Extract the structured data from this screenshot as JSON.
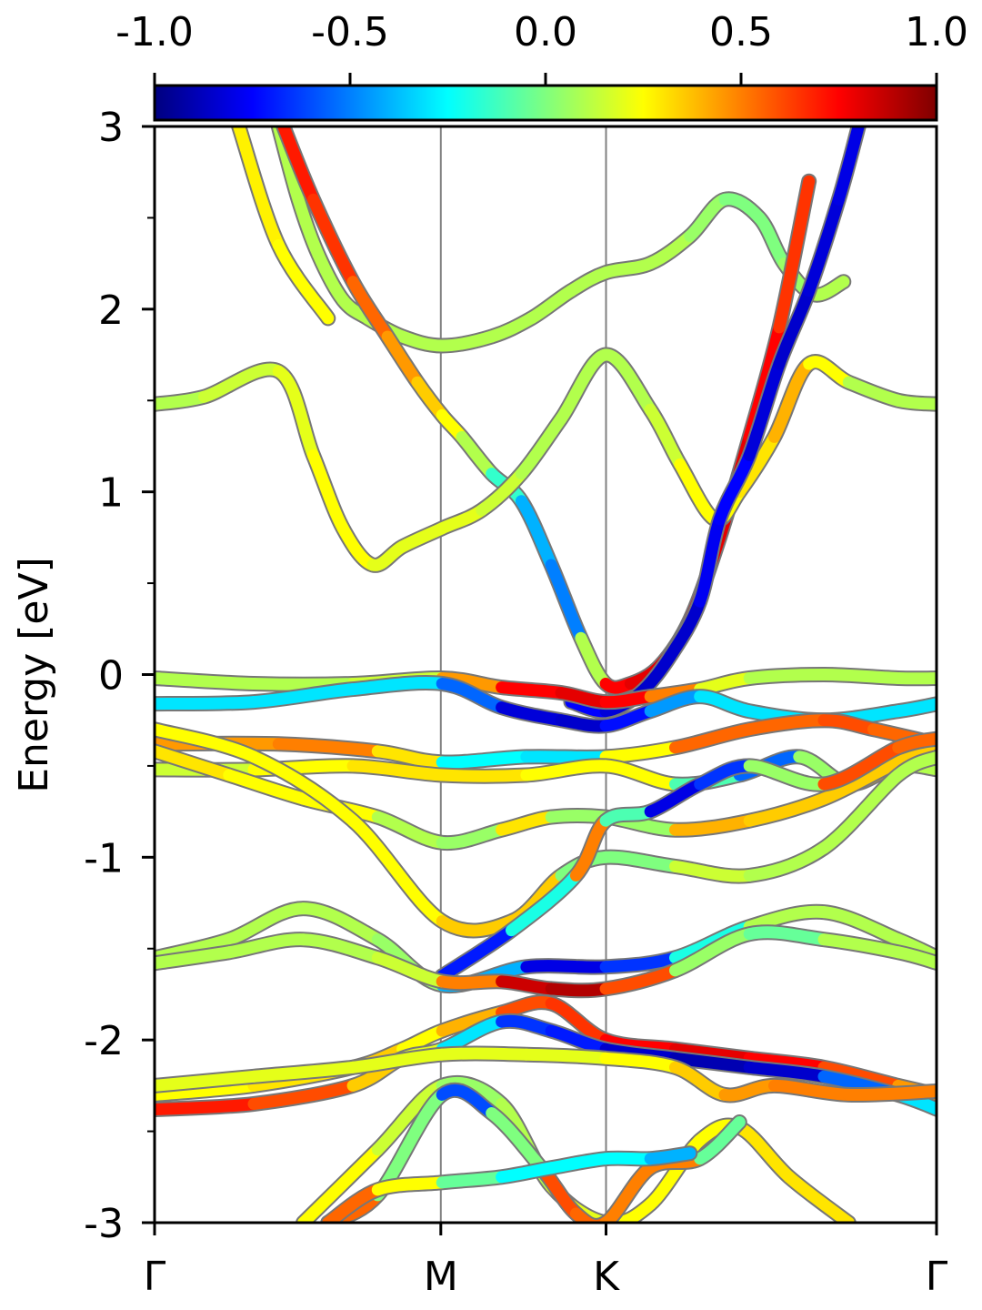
{
  "chart_data": {
    "type": "line",
    "ylabel": "Energy [eV]",
    "ylim": [
      -3,
      3
    ],
    "yticks": [
      "3",
      "2",
      "1",
      "0",
      "-1",
      "-2",
      "-3"
    ],
    "yminor": [
      2.5,
      1.5,
      0.5,
      -0.5,
      -1.5,
      -2.5
    ],
    "kpath": {
      "labels": [
        "Γ",
        "M",
        "K",
        "Γ"
      ],
      "positions": [
        0,
        0.5774,
        0.9107,
        1.5774
      ]
    },
    "colorbar": {
      "range": [
        -1.0,
        1.0
      ],
      "ticks": [
        "-1.0",
        "-0.5",
        "0.0",
        "0.5",
        "1.0"
      ],
      "colormap": "jet",
      "colors": [
        "#00007f",
        "#0000ff",
        "#007fff",
        "#00ffff",
        "#7fff7f",
        "#ffff00",
        "#ff7f00",
        "#ff0000",
        "#7f0000"
      ]
    },
    "series": [
      {
        "x": [
          0.17,
          0.25,
          0.35
        ],
        "y": [
          3.0,
          2.35,
          1.95
        ],
        "s": [
          0.25,
          0.3,
          0.2
        ]
      },
      {
        "x": [
          0.25,
          0.29,
          0.33,
          0.38,
          0.43,
          0.5,
          0.58,
          0.68,
          0.76,
          0.84,
          0.91,
          1.0,
          1.08,
          1.15,
          1.22,
          1.27,
          1.33,
          1.39
        ],
        "y": [
          3.0,
          2.6,
          2.3,
          2.05,
          1.95,
          1.85,
          1.8,
          1.85,
          1.95,
          2.1,
          2.2,
          2.25,
          2.4,
          2.6,
          2.5,
          2.25,
          2.08,
          2.15
        ],
        "s": [
          0.1,
          0.1,
          0.1,
          0.1,
          0.1,
          0.1,
          0.1,
          0.1,
          0.1,
          0.1,
          0.1,
          0.1,
          0.1,
          0.0,
          0.0,
          0.0,
          0.1,
          0.1
        ]
      },
      {
        "x": [
          0.26,
          0.32,
          0.4,
          0.47,
          0.53,
          0.58,
          0.62,
          0.68,
          0.74,
          0.8,
          0.86,
          0.91,
          0.96,
          1.02,
          1.08,
          1.14,
          1.2,
          1.26,
          1.32
        ],
        "y": [
          3.0,
          2.6,
          2.15,
          1.85,
          1.6,
          1.42,
          1.3,
          1.1,
          0.95,
          0.6,
          0.2,
          -0.05,
          -0.05,
          0.05,
          0.3,
          0.75,
          1.3,
          1.9,
          2.7
        ],
        "s": [
          0.7,
          0.7,
          0.6,
          0.5,
          0.4,
          0.3,
          0.2,
          0.0,
          -0.3,
          -0.5,
          -0.5,
          0.7,
          0.8,
          0.8,
          0.8,
          0.8,
          0.8,
          0.7,
          0.6
        ]
      },
      {
        "x": [
          0.0,
          0.1,
          0.25,
          0.32,
          0.38,
          0.44,
          0.5,
          0.58,
          0.66,
          0.74,
          0.82,
          0.91,
          1.0,
          1.06,
          1.13,
          1.18,
          1.25,
          1.32,
          1.4,
          1.5,
          1.58
        ],
        "y": [
          1.48,
          1.52,
          1.66,
          1.2,
          0.8,
          0.6,
          0.7,
          0.8,
          0.9,
          1.1,
          1.4,
          1.75,
          1.45,
          1.15,
          0.85,
          1.0,
          1.3,
          1.7,
          1.6,
          1.5,
          1.48
        ],
        "s": [
          0.1,
          0.1,
          0.2,
          0.2,
          0.3,
          0.2,
          0.2,
          0.2,
          0.2,
          0.1,
          0.1,
          0.1,
          0.1,
          0.2,
          0.3,
          0.2,
          0.4,
          0.4,
          0.1,
          0.1,
          0.1
        ]
      },
      {
        "x": [
          0.84,
          0.91,
          0.98,
          1.04,
          1.1,
          1.14,
          1.2,
          1.26,
          1.32,
          1.38,
          1.42
        ],
        "y": [
          -0.15,
          -0.2,
          -0.1,
          0.1,
          0.4,
          0.85,
          1.2,
          1.7,
          2.1,
          2.6,
          3.0
        ],
        "s": [
          -0.7,
          -0.8,
          -0.85,
          -0.85,
          -0.85,
          -0.7,
          -0.8,
          -0.85,
          -0.85,
          -0.8,
          -0.8
        ]
      },
      {
        "x": [
          0.0,
          0.2,
          0.4,
          0.58,
          0.7,
          0.82,
          0.91,
          1.0,
          1.1,
          1.2,
          1.35,
          1.5,
          1.58
        ],
        "y": [
          -0.02,
          -0.05,
          -0.05,
          -0.02,
          -0.07,
          -0.1,
          -0.15,
          -0.12,
          -0.08,
          -0.02,
          0.0,
          -0.02,
          -0.02
        ],
        "s": [
          0.1,
          0.1,
          0.1,
          0.2,
          0.7,
          0.8,
          0.8,
          0.7,
          0.3,
          0.1,
          0.1,
          0.1,
          0.1
        ]
      },
      {
        "x": [
          0.0,
          0.2,
          0.4,
          0.58,
          0.7,
          0.82,
          0.91,
          1.0,
          1.1,
          1.2,
          1.35,
          1.5,
          1.58
        ],
        "y": [
          -0.16,
          -0.15,
          -0.08,
          -0.05,
          -0.18,
          -0.25,
          -0.28,
          -0.2,
          -0.12,
          -0.2,
          -0.25,
          -0.2,
          -0.16
        ],
        "s": [
          -0.3,
          -0.3,
          -0.3,
          -0.3,
          -0.8,
          -0.85,
          -0.85,
          -0.6,
          -0.3,
          -0.3,
          -0.3,
          -0.3,
          -0.3
        ]
      },
      {
        "x": [
          0.0,
          0.25,
          0.45,
          0.58,
          0.75,
          0.91,
          1.05,
          1.2,
          1.35,
          1.45,
          1.58
        ],
        "y": [
          -0.38,
          -0.38,
          -0.42,
          -0.48,
          -0.45,
          -0.45,
          -0.4,
          -0.3,
          -0.25,
          -0.3,
          -0.38
        ],
        "s": [
          0.5,
          0.4,
          0.6,
          0.0,
          -0.5,
          -0.1,
          0.6,
          0.5,
          0.6,
          0.6,
          0.5
        ]
      },
      {
        "x": [
          0.0,
          0.2,
          0.4,
          0.58,
          0.75,
          0.91,
          1.05,
          1.18,
          1.3,
          1.4,
          1.5,
          1.58
        ],
        "y": [
          -0.52,
          -0.52,
          -0.5,
          -0.55,
          -0.55,
          -0.5,
          -0.6,
          -0.55,
          -0.45,
          -0.6,
          -0.5,
          -0.52
        ],
        "s": [
          0.1,
          0.2,
          0.3,
          0.3,
          0.3,
          0.2,
          0.3,
          -0.5,
          -0.6,
          0.7,
          0.1,
          0.1
        ]
      },
      {
        "x": [
          0.0,
          0.15,
          0.3,
          0.45,
          0.58,
          0.7,
          0.8,
          0.91,
          1.05,
          1.2,
          1.35,
          1.5,
          1.58
        ],
        "y": [
          -0.42,
          -0.55,
          -0.68,
          -0.78,
          -0.92,
          -0.85,
          -0.78,
          -0.78,
          -0.85,
          -0.8,
          -0.68,
          -0.48,
          -0.42
        ],
        "s": [
          0.3,
          0.3,
          0.2,
          0.3,
          -0.1,
          0.2,
          0.4,
          -0.3,
          0.4,
          0.4,
          0.3,
          0.4,
          0.3
        ]
      },
      {
        "x": [
          0.0,
          0.2,
          0.4,
          0.58,
          0.72,
          0.82,
          0.91,
          1.05,
          1.2,
          1.35,
          1.5,
          1.58
        ],
        "y": [
          -0.3,
          -0.45,
          -0.8,
          -1.35,
          -1.35,
          -1.1,
          -1.0,
          -1.05,
          -1.1,
          -0.95,
          -0.55,
          -0.45
        ],
        "s": [
          0.3,
          0.2,
          0.3,
          0.2,
          0.5,
          0.2,
          -0.2,
          0.2,
          0.1,
          0.1,
          0.1,
          0.1
        ]
      },
      {
        "x": [
          0.58,
          0.72,
          0.85,
          0.91,
          1.0,
          1.1,
          1.2,
          1.35,
          1.5,
          1.58
        ],
        "y": [
          -1.65,
          -1.4,
          -1.1,
          -0.8,
          -0.75,
          -0.6,
          -0.5,
          -0.6,
          -0.4,
          -0.35
        ],
        "s": [
          -0.6,
          -0.8,
          0.4,
          0.6,
          -0.8,
          -0.8,
          -0.5,
          0.6,
          0.6,
          0.5
        ]
      },
      {
        "x": [
          0.0,
          0.15,
          0.3,
          0.45,
          0.58,
          0.75,
          0.91,
          1.05,
          1.2,
          1.35,
          1.5,
          1.58
        ],
        "y": [
          -1.55,
          -1.45,
          -1.28,
          -1.45,
          -1.7,
          -1.6,
          -1.6,
          -1.55,
          -1.38,
          -1.3,
          -1.45,
          -1.55
        ],
        "s": [
          0.1,
          0.1,
          0.1,
          0.1,
          0.0,
          -0.8,
          -0.8,
          -0.5,
          0.1,
          0.1,
          0.1,
          0.1
        ]
      },
      {
        "x": [
          0.0,
          0.15,
          0.3,
          0.45,
          0.58,
          0.7,
          0.8,
          0.91,
          1.05,
          1.2,
          1.35,
          1.5,
          1.58
        ],
        "y": [
          -1.58,
          -1.52,
          -1.45,
          -1.55,
          -1.68,
          -1.68,
          -1.72,
          -1.72,
          -1.62,
          -1.42,
          -1.45,
          -1.52,
          -1.58
        ],
        "s": [
          0.1,
          0.1,
          0.1,
          0.1,
          0.2,
          0.8,
          0.9,
          0.9,
          0.3,
          -0.2,
          0.1,
          0.1,
          0.1
        ]
      },
      {
        "x": [
          0.0,
          0.2,
          0.4,
          0.5,
          0.58,
          0.7,
          0.8,
          0.91,
          1.05,
          1.2,
          1.35,
          1.5,
          1.58
        ],
        "y": [
          -2.3,
          -2.25,
          -2.15,
          -2.05,
          -1.95,
          -1.85,
          -1.8,
          -2.0,
          -2.05,
          -2.1,
          -2.15,
          -2.25,
          -2.3
        ],
        "s": [
          0.3,
          0.2,
          0.4,
          0.3,
          0.2,
          0.6,
          0.6,
          0.7,
          0.8,
          0.8,
          0.7,
          0.5,
          0.4
        ]
      },
      {
        "x": [
          0.0,
          0.2,
          0.4,
          0.5,
          0.58,
          0.7,
          0.8,
          0.91,
          1.05,
          1.2,
          1.35,
          1.5,
          1.58
        ],
        "y": [
          -2.38,
          -2.35,
          -2.25,
          -2.1,
          -2.05,
          -1.9,
          -1.95,
          -2.05,
          -2.1,
          -2.15,
          -2.2,
          -2.3,
          -2.38
        ],
        "s": [
          0.6,
          0.8,
          0.4,
          0.3,
          0.1,
          -0.7,
          -0.6,
          -0.8,
          -0.9,
          -0.9,
          -0.8,
          -0.3,
          -0.3
        ]
      },
      {
        "x": [
          0.0,
          0.2,
          0.4,
          0.58,
          0.75,
          0.91,
          1.05,
          1.15,
          1.25,
          1.4,
          1.58
        ],
        "y": [
          -2.25,
          -2.2,
          -2.15,
          -2.08,
          -2.08,
          -2.1,
          -2.15,
          -2.3,
          -2.25,
          -2.3,
          -2.28
        ],
        "s": [
          0.2,
          0.2,
          0.2,
          0.2,
          0.2,
          0.2,
          0.3,
          0.4,
          0.5,
          0.5,
          0.5
        ]
      },
      {
        "x": [
          0.3,
          0.45,
          0.58,
          0.7,
          0.8,
          0.91,
          1.0,
          1.1,
          1.18,
          1.28,
          1.4
        ],
        "y": [
          -3.0,
          -2.6,
          -2.25,
          -2.35,
          -2.8,
          -3.0,
          -2.9,
          -2.55,
          -2.48,
          -2.75,
          -3.0
        ],
        "s": [
          0.3,
          0.2,
          0.1,
          0.0,
          0.2,
          0.2,
          0.3,
          0.2,
          0.3,
          0.3,
          0.3
        ]
      },
      {
        "x": [
          0.35,
          0.45,
          0.58,
          0.68,
          0.78,
          0.85,
          0.91,
          1.0,
          1.1,
          1.18
        ],
        "y": [
          -3.0,
          -2.85,
          -2.3,
          -2.4,
          -2.7,
          -2.95,
          -3.0,
          -2.7,
          -2.65,
          -2.45
        ],
        "s": [
          0.5,
          0.6,
          -0.6,
          -0.6,
          0.6,
          0.6,
          0.5,
          0.5,
          0.5,
          -0.6
        ]
      },
      {
        "x": [
          0.35,
          0.45,
          0.58,
          0.7,
          0.8,
          0.91,
          1.0,
          1.08
        ],
        "y": [
          -3.0,
          -2.82,
          -2.78,
          -2.75,
          -2.7,
          -2.65,
          -2.65,
          -2.62
        ],
        "s": [
          0.7,
          0.4,
          0.1,
          -0.2,
          -0.3,
          -0.2,
          -0.3,
          -0.5
        ]
      }
    ]
  }
}
